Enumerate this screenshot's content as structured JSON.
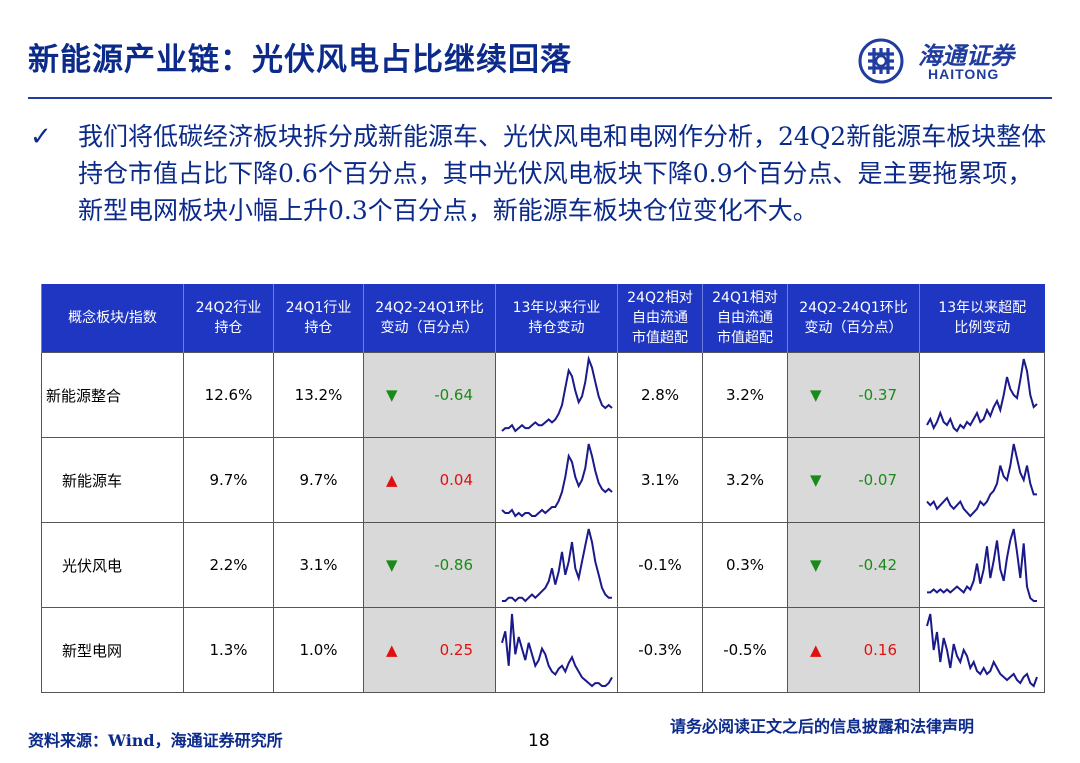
{
  "title": "新能源产业链：光伏风电占比继续回落",
  "logo": {
    "cn": "海通证券",
    "en": "HAITONG",
    "icon": "haitong-logo-icon"
  },
  "bullet": {
    "icon": "checkmark-icon",
    "text": "我们将低碳经济板块拆分成新能源车、光伏风电和电网作分析，24Q2新能源车板块整体持仓市值占比下降0.6个百分点，其中光伏风电板块下降0.9个百分点、是主要拖累项，新型电网板块小幅上升0.3个百分点，新能源车板块仓位变化不大。"
  },
  "table": {
    "headers": [
      "概念板块/指数",
      "24Q2行业\n持仓",
      "24Q1行业\n持仓",
      "24Q2-24Q1环比\n变动（百分点）",
      "13年以来行业\n持仓变动",
      "24Q2相对\n自由流通\n市值超配",
      "24Q1相对\n自由流通\n市值超配",
      "24Q2-24Q1环比\n变动（百分点）",
      "13年以来超配\n比例变动"
    ],
    "rows": [
      {
        "name": "新能源整合",
        "q2": "12.6%",
        "q1": "13.2%",
        "chg": "-0.64",
        "chg_dir": "down",
        "q2_over": "2.8%",
        "q1_over": "3.2%",
        "over_chg": "-0.37",
        "over_dir": "down",
        "spark1": [
          3,
          4,
          4,
          5,
          3,
          4,
          5,
          4,
          4,
          5,
          6,
          5,
          5,
          6,
          7,
          6,
          7,
          9,
          12,
          18,
          24,
          22,
          17,
          13,
          15,
          20,
          28,
          25,
          20,
          15,
          12,
          11,
          12,
          11
        ],
        "spark2": [
          8,
          10,
          7,
          9,
          12,
          9,
          8,
          10,
          7,
          6,
          8,
          7,
          9,
          8,
          10,
          12,
          9,
          10,
          13,
          11,
          14,
          16,
          13,
          18,
          24,
          20,
          18,
          17,
          23,
          30,
          26,
          18,
          14,
          15
        ]
      },
      {
        "name": "新能源车",
        "q2": "9.7%",
        "q1": "9.7%",
        "chg": "0.04",
        "chg_dir": "up",
        "q2_over": "3.1%",
        "q1_over": "3.2%",
        "over_chg": "-0.07",
        "over_dir": "down",
        "spark1": [
          6,
          5,
          5,
          6,
          4,
          5,
          4,
          5,
          5,
          4,
          4,
          5,
          6,
          5,
          6,
          7,
          7,
          9,
          12,
          17,
          24,
          22,
          17,
          14,
          16,
          20,
          28,
          24,
          19,
          15,
          13,
          12,
          13,
          12
        ],
        "spark2": [
          12,
          11,
          12,
          10,
          11,
          12,
          13,
          11,
          10,
          11,
          12,
          10,
          9,
          8,
          9,
          10,
          12,
          11,
          12,
          14,
          15,
          17,
          22,
          19,
          18,
          22,
          28,
          24,
          20,
          18,
          22,
          17,
          14,
          14
        ]
      },
      {
        "name": "光伏风电",
        "q2": "2.2%",
        "q1": "3.1%",
        "chg": "-0.86",
        "chg_dir": "down",
        "q2_over": "-0.1%",
        "q1_over": "0.3%",
        "over_chg": "-0.42",
        "over_dir": "down",
        "spark1": [
          4,
          4,
          5,
          5,
          4,
          5,
          5,
          4,
          5,
          6,
          5,
          6,
          7,
          8,
          10,
          14,
          9,
          13,
          19,
          12,
          16,
          22,
          14,
          11,
          16,
          21,
          26,
          22,
          16,
          12,
          8,
          6,
          5,
          5
        ],
        "spark2": [
          8,
          8,
          9,
          8,
          9,
          8,
          9,
          8,
          9,
          10,
          9,
          8,
          10,
          9,
          12,
          18,
          11,
          16,
          24,
          13,
          19,
          26,
          16,
          12,
          20,
          26,
          30,
          22,
          13,
          25,
          10,
          6,
          5,
          5
        ]
      },
      {
        "name": "新型电网",
        "q2": "1.3%",
        "q1": "1.0%",
        "chg": "0.25",
        "chg_dir": "up",
        "q2_over": "-0.3%",
        "q1_over": "-0.5%",
        "over_chg": "0.16",
        "over_dir": "up",
        "spark1": [
          20,
          24,
          12,
          30,
          16,
          22,
          18,
          14,
          20,
          16,
          12,
          14,
          18,
          16,
          12,
          10,
          9,
          11,
          12,
          10,
          13,
          15,
          12,
          10,
          8,
          7,
          6,
          5,
          6,
          6,
          5,
          5,
          6,
          8
        ],
        "spark2": [
          26,
          30,
          18,
          24,
          14,
          22,
          18,
          12,
          20,
          16,
          14,
          18,
          16,
          12,
          14,
          11,
          10,
          12,
          10,
          11,
          14,
          12,
          10,
          9,
          8,
          9,
          10,
          8,
          7,
          9,
          10,
          7,
          6,
          9
        ]
      }
    ]
  },
  "footer": {
    "source": "资料来源：Wind，海通证券研究所",
    "page": "18",
    "disclaimer": "请务必阅读正文之后的信息披露和法律声明"
  },
  "colors": {
    "navy": "#0b2a8a",
    "header_blue": "#1f36c2",
    "spark": "#1a1a8c",
    "green": "#1a8a1a",
    "red": "#e01010",
    "gray_cell": "#d9d9d9"
  }
}
